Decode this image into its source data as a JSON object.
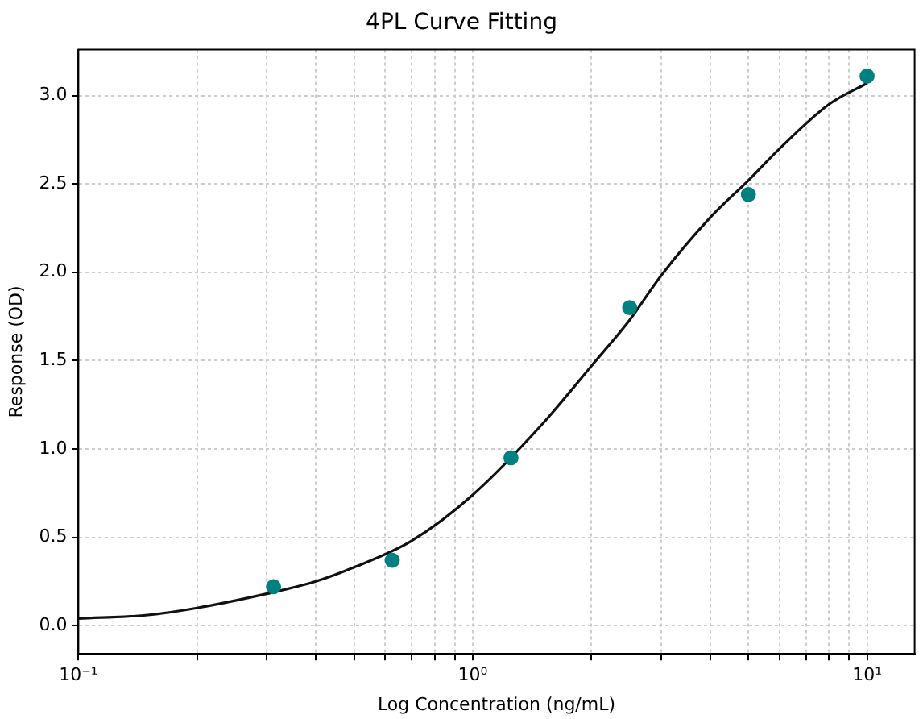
{
  "chart_data": {
    "type": "scatter",
    "title": "4PL Curve Fitting",
    "xlabel": "Log Concentration (ng/mL)",
    "ylabel": "Response (OD)",
    "log": "x",
    "grid": true,
    "xlim": [
      0.1,
      13.2
    ],
    "ylim": [
      -0.16,
      3.26
    ],
    "xticks": [
      {
        "value": 0.1,
        "label": "10⁻¹"
      },
      {
        "value": 0.2,
        "label": null
      },
      {
        "value": 0.3,
        "label": null
      },
      {
        "value": 0.4,
        "label": null
      },
      {
        "value": 0.5,
        "label": null
      },
      {
        "value": 0.6,
        "label": null
      },
      {
        "value": 0.7,
        "label": null
      },
      {
        "value": 0.8,
        "label": null
      },
      {
        "value": 0.9,
        "label": null
      },
      {
        "value": 1,
        "label": "10⁰"
      },
      {
        "value": 2,
        "label": null
      },
      {
        "value": 3,
        "label": null
      },
      {
        "value": 4,
        "label": null
      },
      {
        "value": 5,
        "label": null
      },
      {
        "value": 6,
        "label": null
      },
      {
        "value": 7,
        "label": null
      },
      {
        "value": 8,
        "label": null
      },
      {
        "value": 9,
        "label": null
      },
      {
        "value": 10,
        "label": "10¹"
      }
    ],
    "yticks": [
      {
        "value": 0,
        "label": "0.0"
      },
      {
        "value": 0.5,
        "label": "0.5"
      },
      {
        "value": 1,
        "label": "1.0"
      },
      {
        "value": 1.5,
        "label": "1.5"
      },
      {
        "value": 2,
        "label": "2.0"
      },
      {
        "value": 2.5,
        "label": "2.5"
      },
      {
        "value": 3,
        "label": "3.0"
      }
    ],
    "series": [
      {
        "type": "line",
        "color": "#111111",
        "marker": "none",
        "line_style": "solid",
        "x": [
          0.1,
          0.15,
          0.2,
          0.3,
          0.4,
          0.5,
          0.7,
          1,
          1.5,
          2,
          2.5,
          3,
          4,
          5,
          6,
          8,
          10
        ],
        "values": [
          0.04,
          0.06,
          0.1,
          0.18,
          0.25,
          0.33,
          0.48,
          0.74,
          1.14,
          1.47,
          1.73,
          1.98,
          2.31,
          2.52,
          2.7,
          2.95,
          3.07
        ]
      },
      {
        "color": "#008080",
        "marker": "circle",
        "x": [
          0.3125,
          0.625,
          1.25,
          2.5,
          5,
          10
        ],
        "values": [
          0.22,
          0.37,
          0.95,
          1.8,
          2.44,
          3.11
        ]
      }
    ]
  }
}
